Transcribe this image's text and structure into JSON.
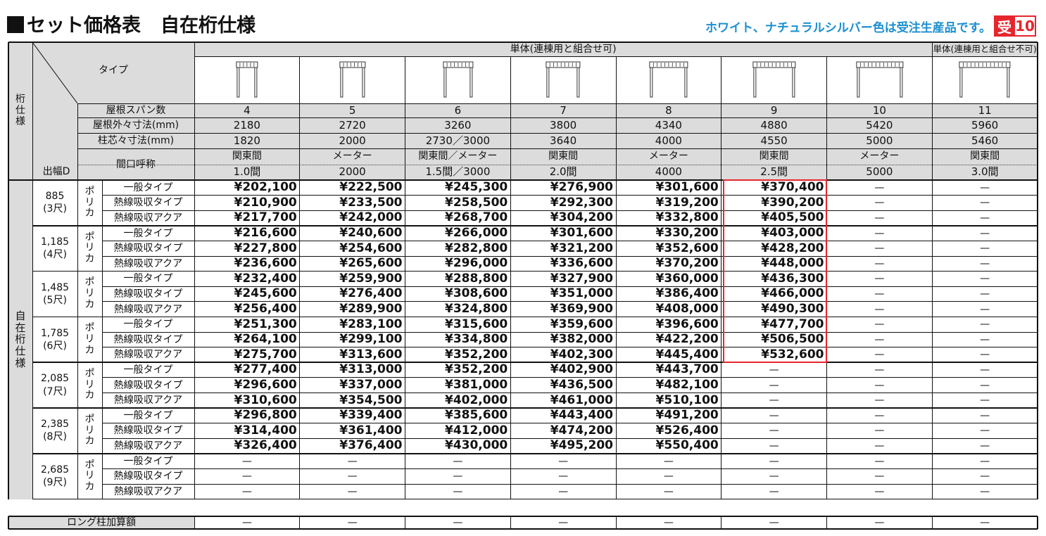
{
  "title": "セット価格表",
  "subtitle": "自在桁仕様",
  "note": "ホワイト、ナチュラルシルバー色は受注生産品です。",
  "badge": {
    "mark": "受",
    "num": "10",
    "color": "#e6262e"
  },
  "header": {
    "group1": "単体(連棟用と組合せ可)",
    "group2": "単体(連棟用と組合せ不可)",
    "type_label": "タイプ",
    "side_top": "桁仕様",
    "side_bottom": "自在桁仕様",
    "rows": {
      "span": "屋根スパン数",
      "outer": "屋根外々寸法(mm)",
      "pillar": "柱芯々寸法(mm)",
      "frontage": "間口呼称",
      "depth": "出幅D"
    }
  },
  "columns": [
    {
      "span": "4",
      "outer": "2180",
      "pillar": "1820",
      "f1": "関東間",
      "f2": "1.0間"
    },
    {
      "span": "5",
      "outer": "2720",
      "pillar": "2000",
      "f1": "メーター",
      "f2": "2000"
    },
    {
      "span": "6",
      "outer": "3260",
      "pillar": "2730／3000",
      "f1": "関東間／メーター",
      "f2": "1.5間／3000"
    },
    {
      "span": "7",
      "outer": "3800",
      "pillar": "3640",
      "f1": "関東間",
      "f2": "2.0間"
    },
    {
      "span": "8",
      "outer": "4340",
      "pillar": "4000",
      "f1": "メーター",
      "f2": "4000"
    },
    {
      "span": "9",
      "outer": "4880",
      "pillar": "4550",
      "f1": "関東間",
      "f2": "2.5間"
    },
    {
      "span": "10",
      "outer": "5420",
      "pillar": "5000",
      "f1": "メーター",
      "f2": "5000"
    },
    {
      "span": "11",
      "outer": "5960",
      "pillar": "5460",
      "f1": "関東間",
      "f2": "3.0間"
    }
  ],
  "material": "ポリカ",
  "variants": [
    "一般タイプ",
    "熱線吸収タイプ",
    "熱線吸収アクア"
  ],
  "dash": "—",
  "groups": [
    {
      "d1": "885",
      "d2": "(3尺)",
      "rows": [
        [
          "¥202,100",
          "¥222,500",
          "¥245,300",
          "¥276,900",
          "¥301,600",
          "¥370,400",
          "—",
          "—"
        ],
        [
          "¥210,900",
          "¥233,500",
          "¥258,500",
          "¥292,300",
          "¥319,200",
          "¥390,200",
          "—",
          "—"
        ],
        [
          "¥217,700",
          "¥242,000",
          "¥268,700",
          "¥304,200",
          "¥332,800",
          "¥405,500",
          "—",
          "—"
        ]
      ]
    },
    {
      "d1": "1,185",
      "d2": "(4尺)",
      "rows": [
        [
          "¥216,600",
          "¥240,600",
          "¥266,000",
          "¥301,600",
          "¥330,200",
          "¥403,000",
          "—",
          "—"
        ],
        [
          "¥227,800",
          "¥254,600",
          "¥282,800",
          "¥321,200",
          "¥352,600",
          "¥428,200",
          "—",
          "—"
        ],
        [
          "¥236,600",
          "¥265,600",
          "¥296,000",
          "¥336,600",
          "¥370,200",
          "¥448,000",
          "—",
          "—"
        ]
      ]
    },
    {
      "d1": "1,485",
      "d2": "(5尺)",
      "rows": [
        [
          "¥232,400",
          "¥259,900",
          "¥288,800",
          "¥327,900",
          "¥360,000",
          "¥436,300",
          "—",
          "—"
        ],
        [
          "¥245,600",
          "¥276,400",
          "¥308,600",
          "¥351,000",
          "¥386,400",
          "¥466,000",
          "—",
          "—"
        ],
        [
          "¥256,400",
          "¥289,900",
          "¥324,800",
          "¥369,900",
          "¥408,000",
          "¥490,300",
          "—",
          "—"
        ]
      ]
    },
    {
      "d1": "1,785",
      "d2": "(6尺)",
      "rows": [
        [
          "¥251,300",
          "¥283,100",
          "¥315,600",
          "¥359,600",
          "¥396,600",
          "¥477,700",
          "—",
          "—"
        ],
        [
          "¥264,100",
          "¥299,100",
          "¥334,800",
          "¥382,000",
          "¥422,200",
          "¥506,500",
          "—",
          "—"
        ],
        [
          "¥275,700",
          "¥313,600",
          "¥352,200",
          "¥402,300",
          "¥445,400",
          "¥532,600",
          "—",
          "—"
        ]
      ]
    },
    {
      "d1": "2,085",
      "d2": "(7尺)",
      "rows": [
        [
          "¥277,400",
          "¥313,000",
          "¥352,200",
          "¥402,900",
          "¥443,700",
          "—",
          "—",
          "—"
        ],
        [
          "¥296,600",
          "¥337,000",
          "¥381,000",
          "¥436,500",
          "¥482,100",
          "—",
          "—",
          "—"
        ],
        [
          "¥310,600",
          "¥354,500",
          "¥402,000",
          "¥461,000",
          "¥510,100",
          "—",
          "—",
          "—"
        ]
      ]
    },
    {
      "d1": "2,385",
      "d2": "(8尺)",
      "rows": [
        [
          "¥296,800",
          "¥339,400",
          "¥385,600",
          "¥443,400",
          "¥491,200",
          "—",
          "—",
          "—"
        ],
        [
          "¥314,400",
          "¥361,400",
          "¥412,000",
          "¥474,200",
          "¥526,400",
          "—",
          "—",
          "—"
        ],
        [
          "¥326,400",
          "¥376,400",
          "¥430,000",
          "¥495,200",
          "¥550,400",
          "—",
          "—",
          "—"
        ]
      ]
    },
    {
      "d1": "2,685",
      "d2": "(9尺)",
      "rows": [
        [
          "—",
          "—",
          "—",
          "—",
          "—",
          "—",
          "—",
          "—"
        ],
        [
          "—",
          "—",
          "—",
          "—",
          "—",
          "—",
          "—",
          "—"
        ],
        [
          "—",
          "—",
          "—",
          "—",
          "—",
          "—",
          "—",
          "—"
        ]
      ]
    }
  ],
  "long_pillar": {
    "label": "ロング柱加算額",
    "values": [
      "—",
      "—",
      "—",
      "—",
      "—",
      "—",
      "—",
      "—"
    ]
  }
}
